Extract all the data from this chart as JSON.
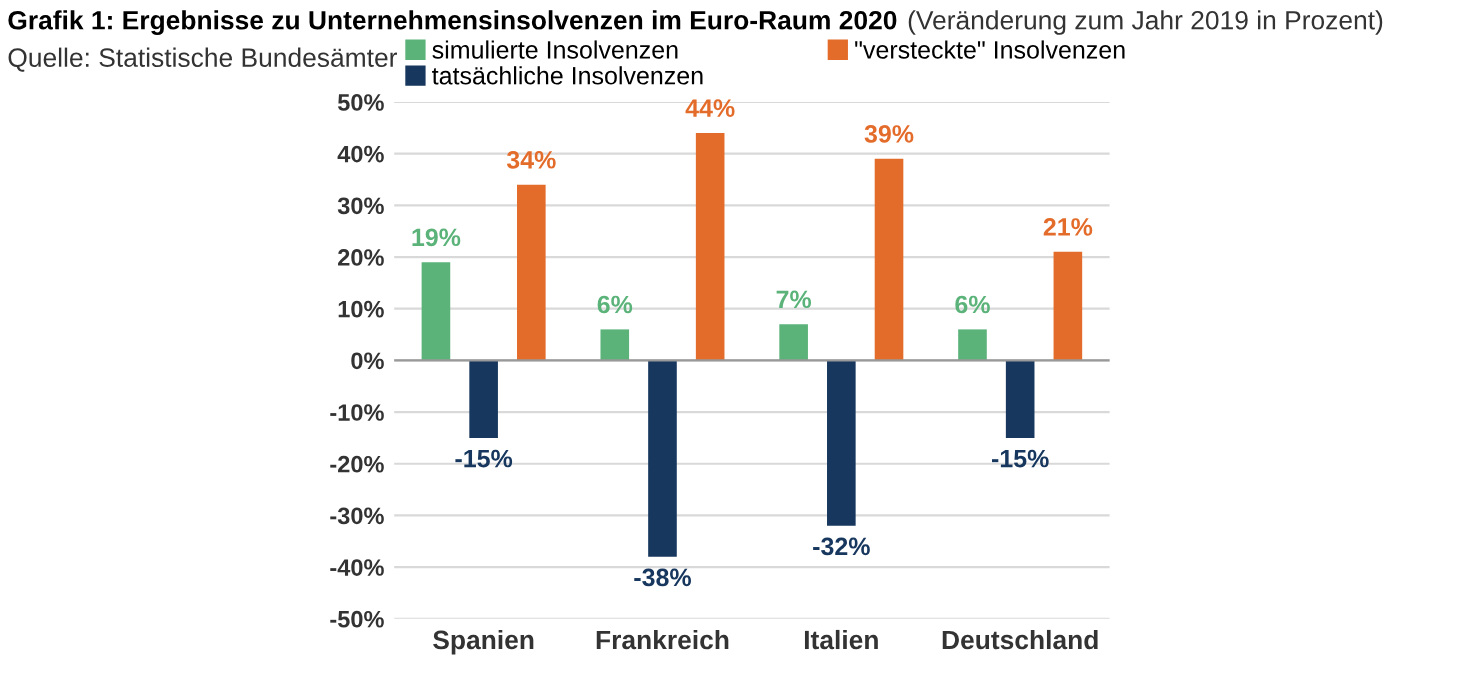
{
  "chart_data": {
    "type": "bar",
    "title": "Grafik 1: Ergebnisse zu Unternehmensinsolvenzen im Euro-Raum 2020",
    "subtitle": "(Veränderung zum Jahr 2019 in Prozent)",
    "annotations": [
      "Quelle: Statistische Bundesämter"
    ],
    "categories": [
      "Spanien",
      "Frankreich",
      "Italien",
      "Deutschland"
    ],
    "series": [
      {
        "name": "simulierte Insolvenzen",
        "color": "#5bb37a",
        "values": [
          19,
          6,
          7,
          6
        ],
        "value_labels": [
          "19%",
          "6%",
          "7%",
          "6%"
        ]
      },
      {
        "name": "tatsächliche Insolvenzen",
        "color": "#17375e",
        "values": [
          -15,
          -38,
          -32,
          -15
        ],
        "value_labels": [
          "-15%",
          "-38%",
          "-32%",
          "-15%"
        ]
      },
      {
        "name": "\"versteckte\" Insolvenzen",
        "color": "#e46c2a",
        "values": [
          34,
          44,
          39,
          21
        ],
        "value_labels": [
          "34%",
          "44%",
          "39%",
          "21%"
        ]
      }
    ],
    "ylim": [
      -50,
      50
    ],
    "yticks": [
      {
        "value": -50,
        "label": "-50%"
      },
      {
        "value": -40,
        "label": "-40%"
      },
      {
        "value": -30,
        "label": "-30%"
      },
      {
        "value": -20,
        "label": "-20%"
      },
      {
        "value": -10,
        "label": "-10%"
      },
      {
        "value": 0,
        "label": "0%"
      },
      {
        "value": 10,
        "label": "10%"
      },
      {
        "value": 20,
        "label": "20%"
      },
      {
        "value": 30,
        "label": "30%"
      },
      {
        "value": 40,
        "label": "40%"
      },
      {
        "value": 50,
        "label": "50%"
      }
    ],
    "grid": "y",
    "legend": "top"
  }
}
